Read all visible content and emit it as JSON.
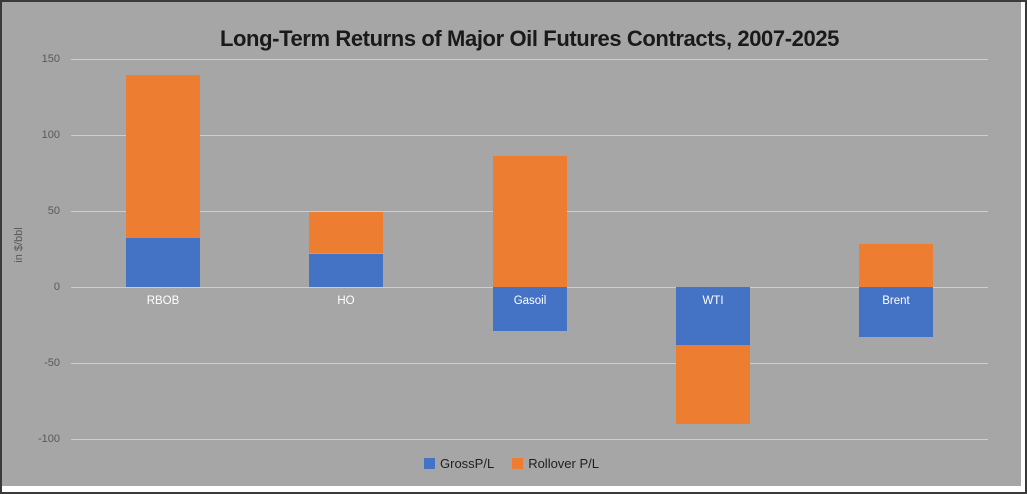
{
  "title": "Long-Term Returns of Major Oil Futures Contracts, 2007-2025",
  "colors": {
    "panel_background": "#a6a6a6",
    "gridline": "#cdcdcd",
    "gross_blue": "#4472c4",
    "rollover_orange": "#ed7d31",
    "axis_text": "#595959",
    "title_text": "#1a1a1a",
    "category_text": "#ffffff",
    "frame_border": "#3a3a3a"
  },
  "chart_data": {
    "type": "bar",
    "stacked": true,
    "title": "Long-Term Returns of Major Oil Futures Contracts, 2007-2025",
    "categories": [
      "RBOB",
      "HO",
      "Gasoil",
      "WTI",
      "Brent"
    ],
    "series": [
      {
        "name": "GrossP/L",
        "color": "#4472c4",
        "values": [
          32,
          22,
          -29,
          -38,
          -33
        ]
      },
      {
        "name": "Rollover P/L",
        "color": "#ed7d31",
        "values": [
          107,
          27,
          86,
          -52,
          28
        ]
      }
    ],
    "stack_tops": [
      139,
      49,
      86,
      0,
      28
    ],
    "stack_bottoms": [
      0,
      0,
      -29,
      -90,
      -33
    ],
    "xlabel": "",
    "ylabel": "in $/bbl",
    "ylim": [
      -100,
      150
    ],
    "ytick_step": 50,
    "yticks": [
      150,
      100,
      50,
      0,
      -50,
      -100
    ],
    "grid": true,
    "legend_position": "bottom"
  }
}
